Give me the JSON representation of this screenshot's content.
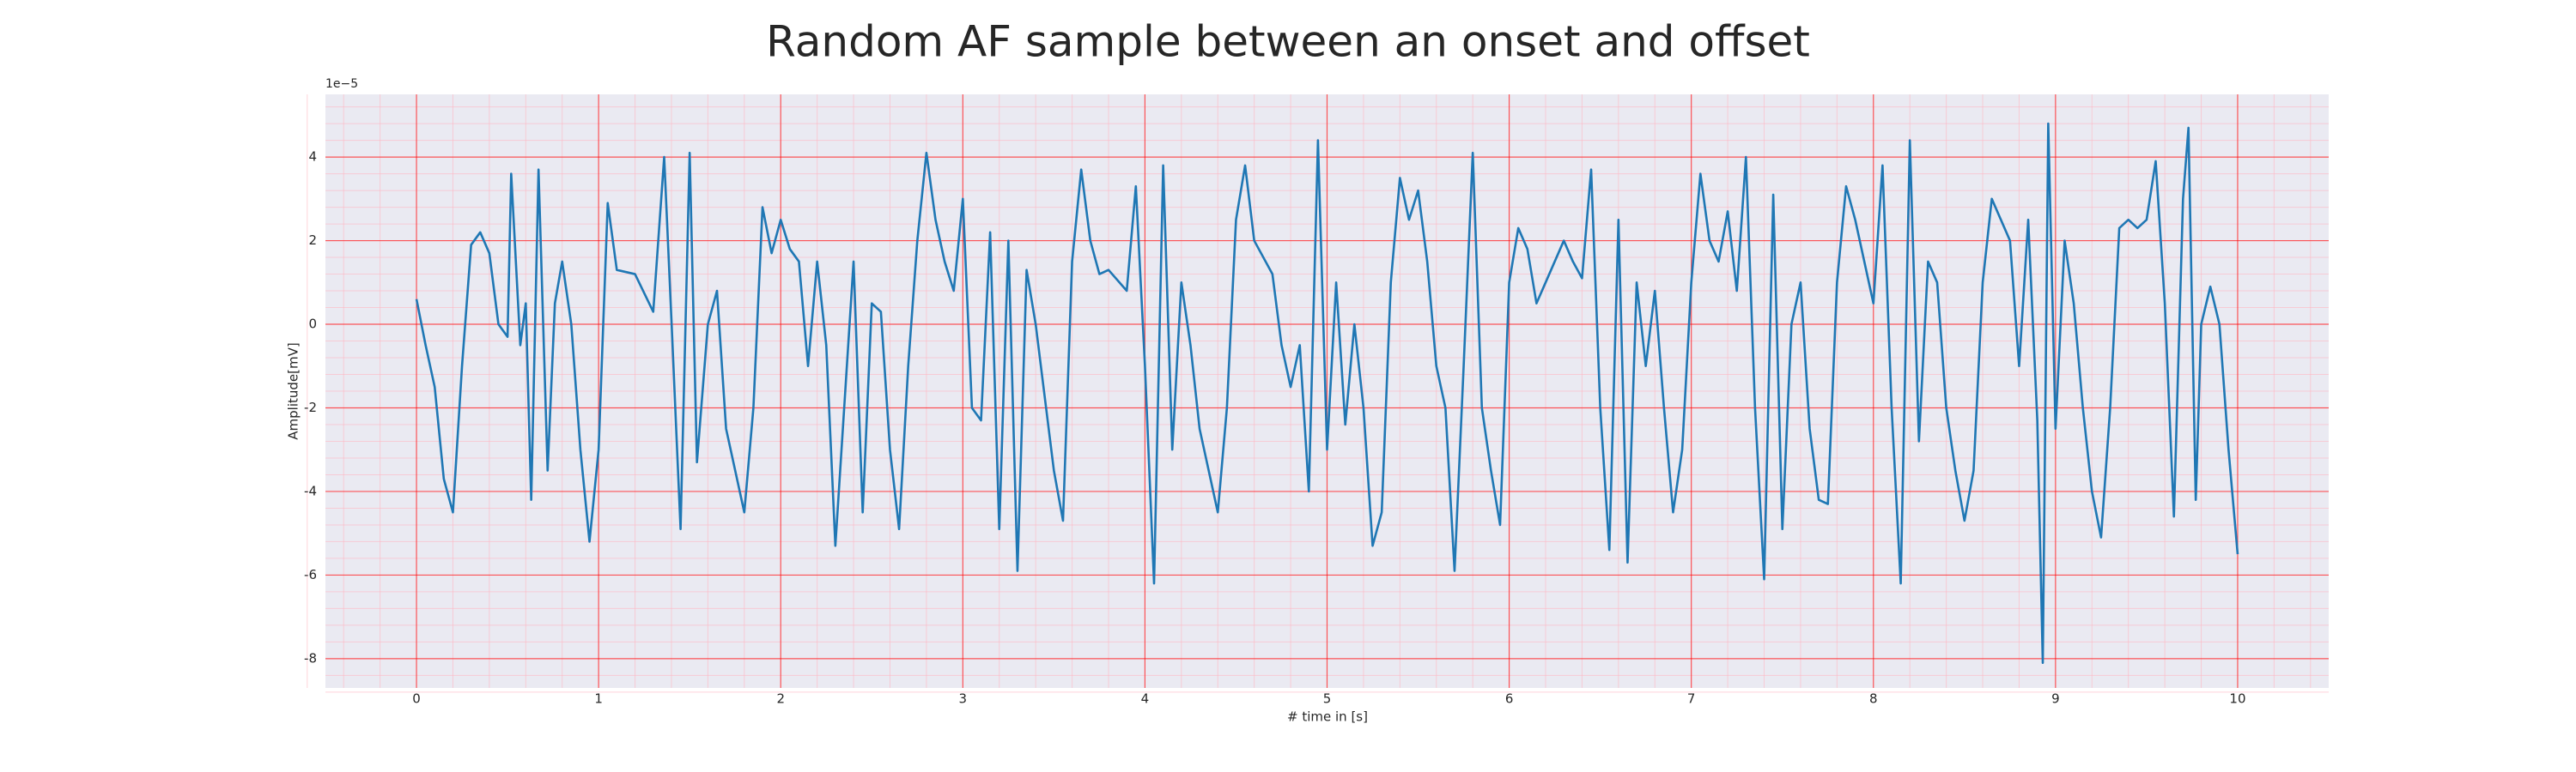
{
  "chart_data": {
    "type": "line",
    "title": "Random AF sample between an onset and offset",
    "xlabel": "# time in [s]",
    "ylabel": "Amplitude[mV]",
    "y_offset_label": "1e−5",
    "color": "#1f77b4",
    "grid": true,
    "minor_grid": true,
    "grid_color": "#ff0000",
    "minor_grid_color": "#ffb6c1",
    "background": "#eaeaf2",
    "x": [
      0,
      0.05,
      0.1,
      0.15,
      0.2,
      0.25,
      0.3,
      0.35,
      0.4,
      0.45,
      0.5,
      0.52,
      0.57,
      0.6,
      0.63,
      0.67,
      0.72,
      0.76,
      0.8,
      0.85,
      0.9,
      0.95,
      1.0,
      1.05,
      1.1,
      1.2,
      1.3,
      1.36,
      1.4,
      1.45,
      1.5,
      1.54,
      1.6,
      1.65,
      1.7,
      1.8,
      1.85,
      1.9,
      1.95,
      2.0,
      2.05,
      2.1,
      2.15,
      2.2,
      2.25,
      2.3,
      2.4,
      2.45,
      2.5,
      2.55,
      2.6,
      2.65,
      2.7,
      2.75,
      2.8,
      2.85,
      2.9,
      2.95,
      3.0,
      3.05,
      3.1,
      3.15,
      3.2,
      3.25,
      3.3,
      3.35,
      3.4,
      3.5,
      3.55,
      3.6,
      3.65,
      3.7,
      3.75,
      3.8,
      3.9,
      3.95,
      4.0,
      4.05,
      4.1,
      4.15,
      4.2,
      4.25,
      4.3,
      4.4,
      4.45,
      4.5,
      4.55,
      4.6,
      4.7,
      4.75,
      4.8,
      4.85,
      4.9,
      4.95,
      5.0,
      5.05,
      5.1,
      5.15,
      5.2,
      5.25,
      5.3,
      5.35,
      5.4,
      5.45,
      5.5,
      5.55,
      5.6,
      5.65,
      5.7,
      5.75,
      5.8,
      5.85,
      5.9,
      5.95,
      6.0,
      6.05,
      6.1,
      6.15,
      6.2,
      6.3,
      6.35,
      6.4,
      6.45,
      6.5,
      6.55,
      6.6,
      6.65,
      6.7,
      6.75,
      6.8,
      6.85,
      6.9,
      6.95,
      7.0,
      7.05,
      7.1,
      7.15,
      7.2,
      7.25,
      7.3,
      7.35,
      7.4,
      7.45,
      7.5,
      7.55,
      7.6,
      7.65,
      7.7,
      7.75,
      7.8,
      7.85,
      7.9,
      7.95,
      8.0,
      8.05,
      8.1,
      8.15,
      8.2,
      8.25,
      8.3,
      8.35,
      8.4,
      8.45,
      8.5,
      8.55,
      8.6,
      8.65,
      8.7,
      8.75,
      8.8,
      8.85,
      8.9,
      8.93,
      8.96,
      9.0,
      9.05,
      9.1,
      9.15,
      9.2,
      9.25,
      9.3,
      9.35,
      9.4,
      9.45,
      9.5,
      9.55,
      9.6,
      9.65,
      9.7,
      9.73,
      9.77,
      9.8,
      9.85,
      9.9,
      9.95,
      10.0
    ],
    "values": [
      0.6,
      -0.5,
      -1.5,
      -3.7,
      -4.5,
      -1,
      1.9,
      2.2,
      1.7,
      0,
      -0.3,
      3.6,
      -0.5,
      0.5,
      -4.2,
      3.7,
      -3.5,
      0.5,
      1.5,
      0,
      -3,
      -5.2,
      -3,
      2.9,
      1.3,
      1.2,
      0.3,
      4,
      0.1,
      -4.9,
      4.1,
      -3.3,
      0,
      0.8,
      -2.5,
      -4.5,
      -2,
      2.8,
      1.7,
      2.5,
      1.8,
      1.5,
      -1,
      1.5,
      -0.5,
      -5.3,
      1.5,
      -4.5,
      0.5,
      0.3,
      -3,
      -4.9,
      -1,
      2,
      4.1,
      2.5,
      1.5,
      0.8,
      3,
      -2,
      -2.3,
      2.2,
      -4.9,
      2,
      -5.9,
      1.3,
      0,
      -3.5,
      -4.7,
      1.5,
      3.7,
      2,
      1.2,
      1.3,
      0.8,
      3.3,
      -1,
      -6.2,
      3.8,
      -3,
      1,
      -0.5,
      -2.5,
      -4.5,
      -2,
      2.5,
      3.8,
      2,
      1.2,
      -0.5,
      -1.5,
      -0.5,
      -4,
      4.4,
      -3,
      1,
      -2.4,
      0,
      -2,
      -5.3,
      -4.5,
      1,
      3.5,
      2.5,
      3.2,
      1.5,
      -1,
      -2,
      -5.9,
      -1,
      4.1,
      -2,
      -3.5,
      -4.8,
      1,
      2.3,
      1.8,
      0.5,
      1,
      2,
      1.5,
      1.1,
      3.7,
      -2,
      -5.4,
      2.5,
      -5.7,
      1,
      -1,
      0.8,
      -2,
      -4.5,
      -3,
      1,
      3.6,
      2,
      1.5,
      2.7,
      0.8,
      4,
      -2,
      -6.1,
      3.1,
      -4.9,
      0,
      1,
      -2.5,
      -4.2,
      -4.3,
      1,
      3.3,
      2.5,
      1.5,
      0.5,
      3.8,
      -2,
      -6.2,
      4.4,
      -2.8,
      1.5,
      1,
      -2,
      -3.5,
      -4.7,
      -3.5,
      1,
      3,
      2.5,
      2,
      -1,
      2.5,
      -2.3,
      -8.1,
      4.8,
      -2.5,
      2,
      0.5,
      -2,
      -4,
      -5.1,
      -2,
      2.3,
      2.5,
      2.3,
      2.5,
      3.9,
      0.5,
      -4.6,
      3,
      4.7,
      -4.2,
      0,
      0.9,
      0,
      -3,
      -5.5
    ],
    "xlim": [
      -0.5,
      10.5
    ],
    "xticks": [
      0,
      1,
      2,
      3,
      4,
      5,
      6,
      7,
      8,
      9,
      10
    ],
    "ylim": [
      -8.7,
      5.5
    ],
    "yticks": [
      -8,
      -6,
      -4,
      -2,
      0,
      2,
      4
    ]
  }
}
